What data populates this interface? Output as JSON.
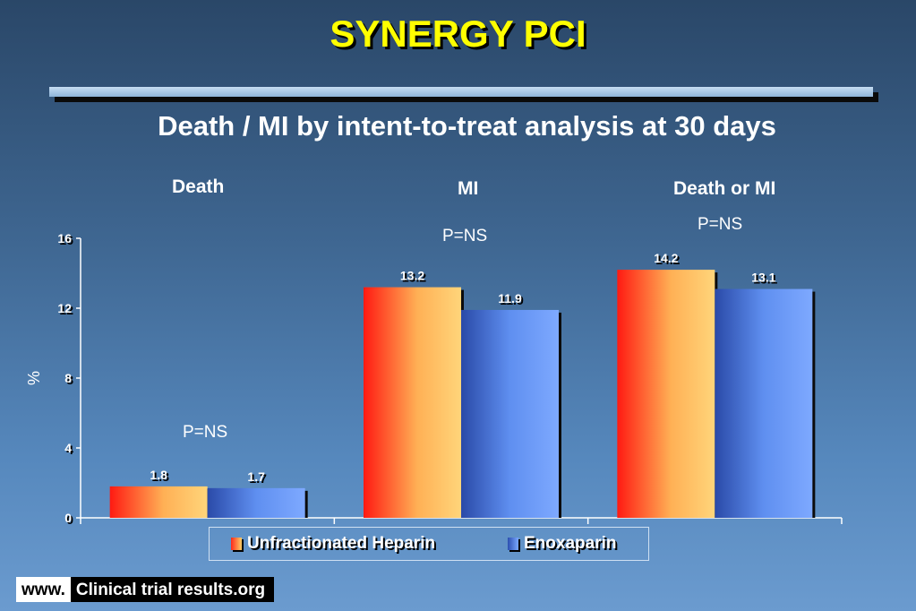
{
  "title": "SYNERGY PCI",
  "subtitle": "Death / MI by intent-to-treat analysis at 30 days",
  "footer": {
    "prefix": "www.",
    "site": "Clinical trial results.org"
  },
  "pvalues": [
    "P=NS",
    "P=NS",
    "P=NS"
  ],
  "chart_data": {
    "type": "bar",
    "categories": [
      "Death",
      "MI",
      "Death or MI"
    ],
    "series": [
      {
        "name": "Unfractionated Heparin",
        "values": [
          1.8,
          13.2,
          14.2
        ],
        "color": "#ff6a33"
      },
      {
        "name": "Enoxaparin",
        "values": [
          1.7,
          11.9,
          13.1
        ],
        "color": "#4f7fe0"
      }
    ],
    "data_labels": [
      [
        "1.8",
        "13.2",
        "14.2"
      ],
      [
        "1.7",
        "11.9",
        "13.1"
      ]
    ],
    "ylabel": "%",
    "ylim": [
      0,
      16
    ],
    "yticks": [
      0,
      4,
      8,
      12,
      16
    ],
    "legend_position": "bottom",
    "grid": false
  }
}
